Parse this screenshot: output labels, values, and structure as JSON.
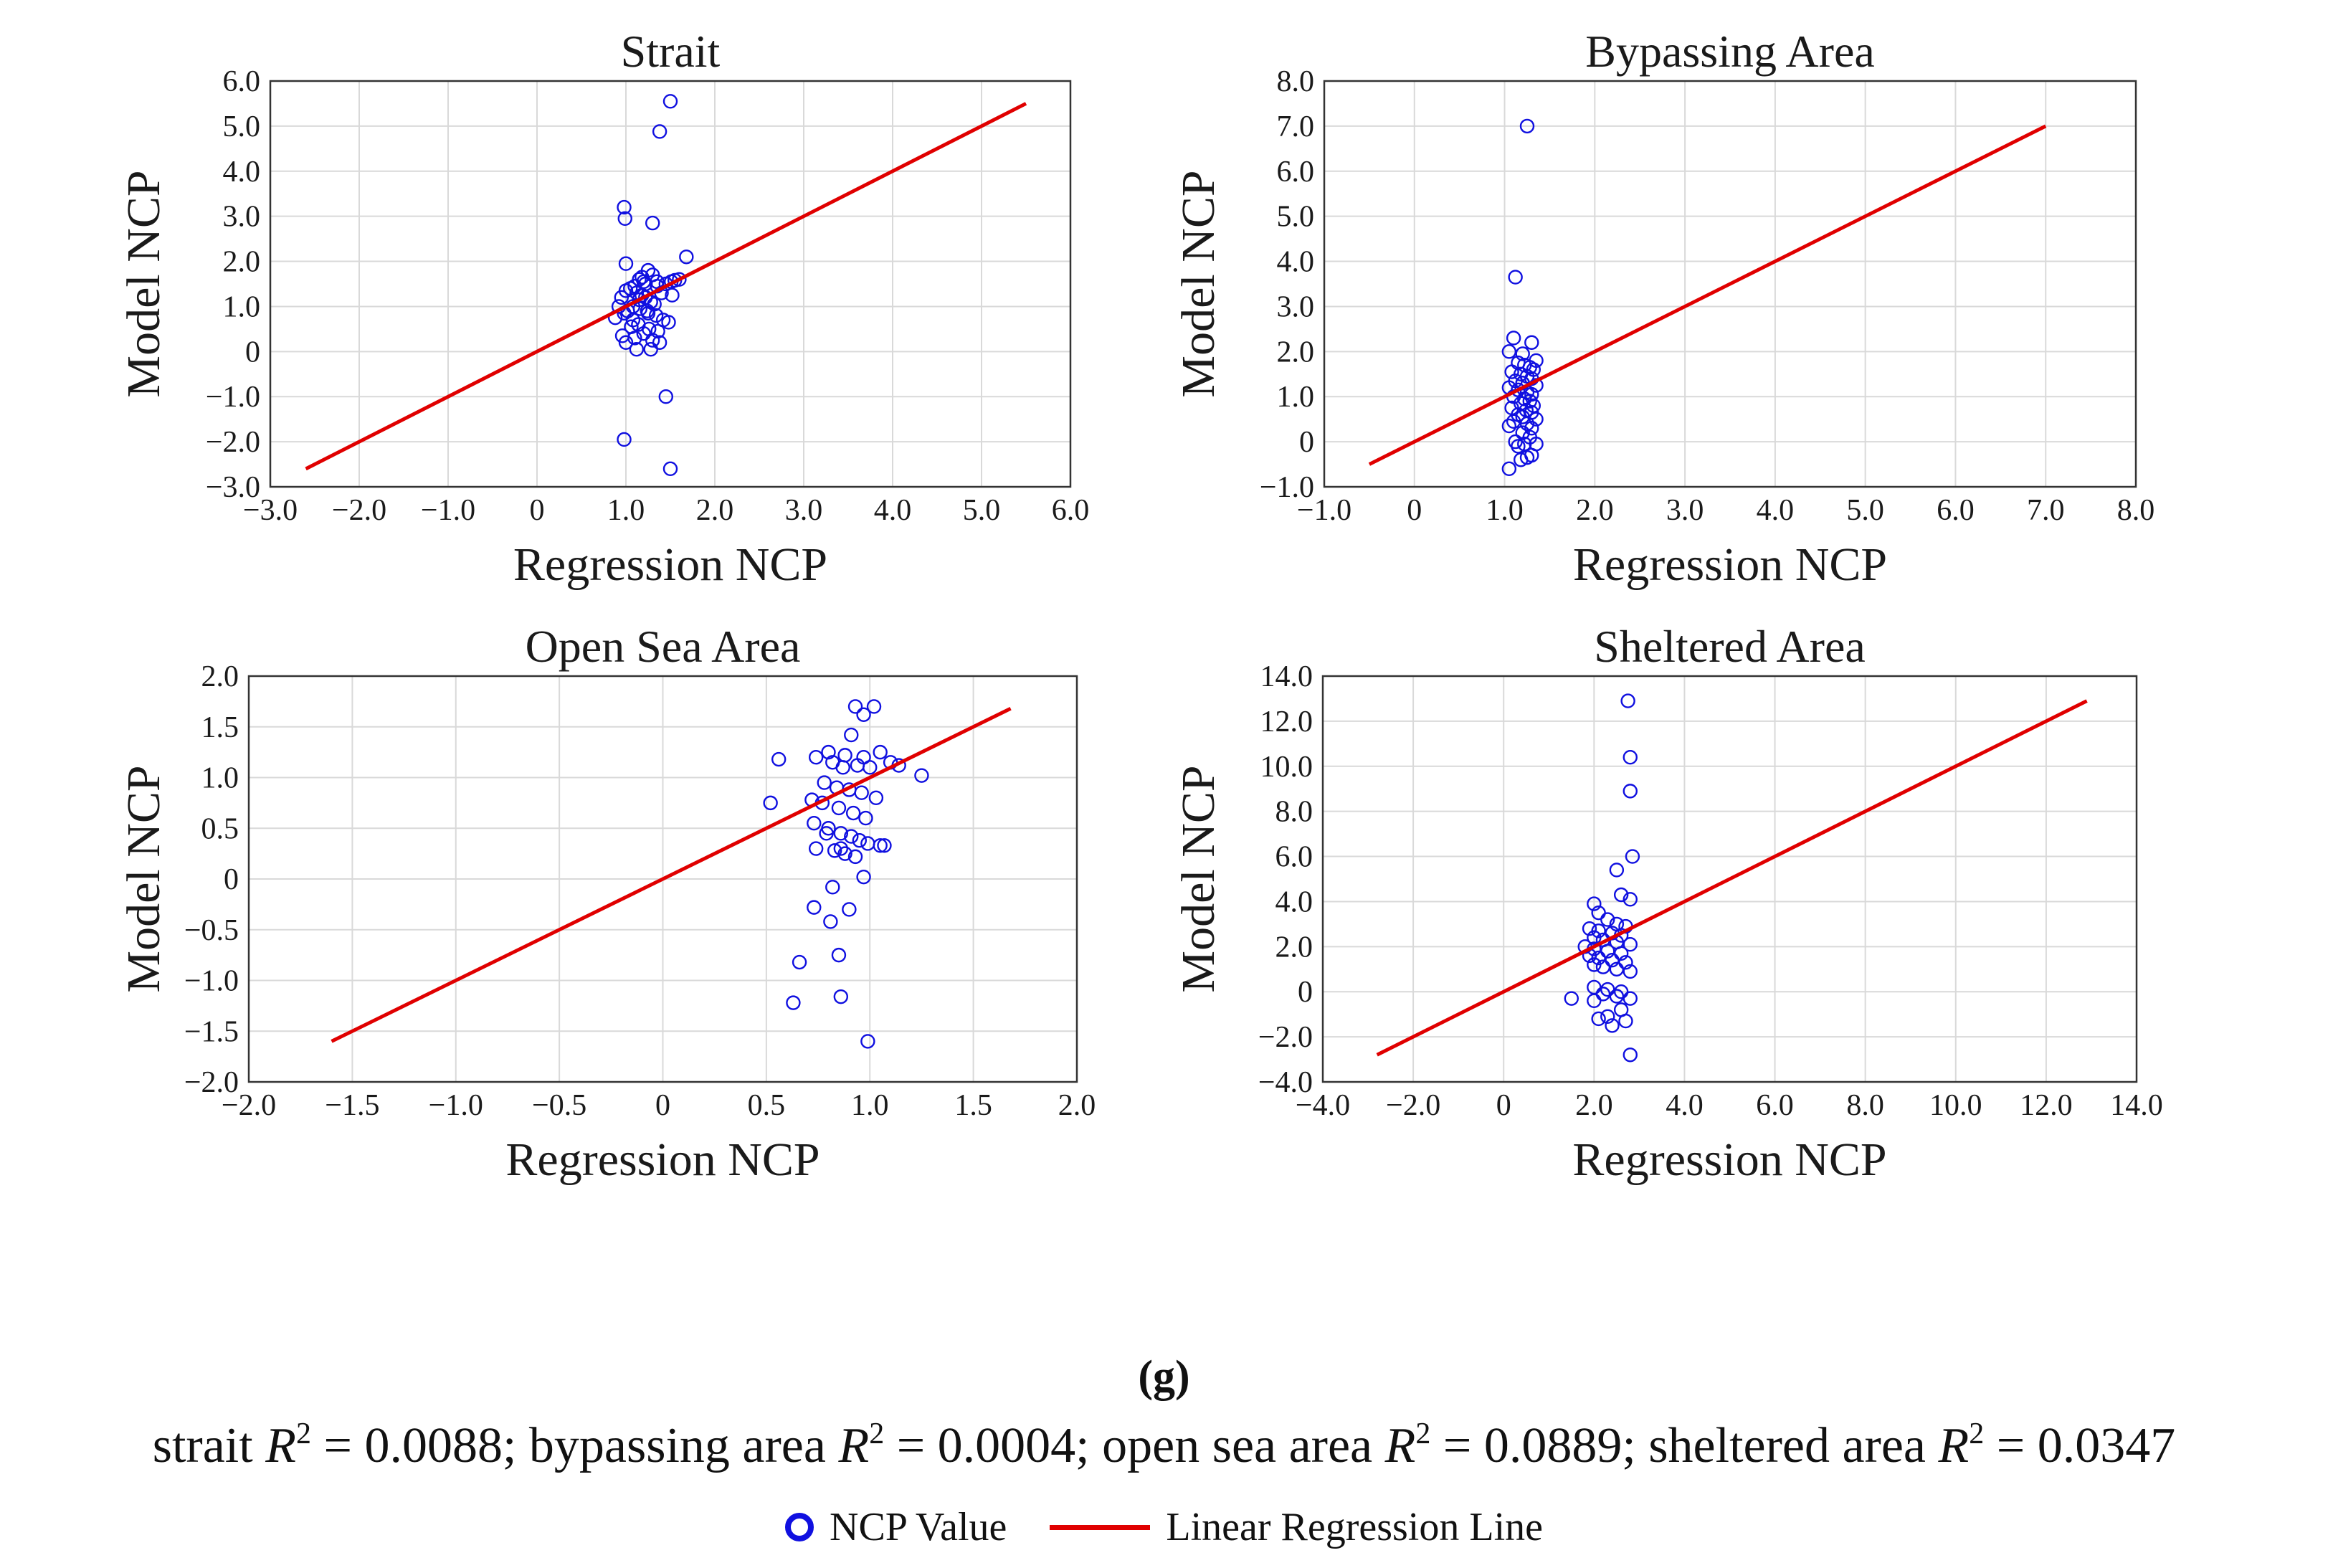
{
  "figure_label": "(g)",
  "r2_items": [
    {
      "name": "strait",
      "r2": "0.0088"
    },
    {
      "name": "bypassing area",
      "r2": "0.0004"
    },
    {
      "name": "open sea area",
      "r2": "0.0889"
    },
    {
      "name": "sheltered area",
      "r2": "0.0347"
    }
  ],
  "r2_symbol": "R",
  "r2_superscript": "2",
  "legend": {
    "points_label": "NCP Value",
    "line_label": "Linear Regression Line"
  },
  "colors": {
    "points": "#1010e0",
    "line": "#e00000"
  },
  "chart_data": [
    {
      "type": "scatter",
      "title": "Strait",
      "xlabel": "Regression NCP",
      "ylabel": "Model NCP",
      "xlim": [
        -3.0,
        6.0
      ],
      "ylim": [
        -3.0,
        6.0
      ],
      "xticks": [
        -3.0,
        -2.0,
        -1.0,
        0,
        1.0,
        2.0,
        3.0,
        4.0,
        5.0,
        6.0
      ],
      "xtick_labels": [
        "−3.0",
        "−2.0",
        "−1.0",
        "0",
        "1.0",
        "2.0",
        "3.0",
        "4.0",
        "5.0",
        "6.0"
      ],
      "yticks": [
        -3.0,
        -2.0,
        -1.0,
        0,
        1.0,
        2.0,
        3.0,
        4.0,
        5.0,
        6.0
      ],
      "ytick_labels": [
        "−3.0",
        "−2.0",
        "−1.0",
        "0",
        "1.0",
        "2.0",
        "3.0",
        "4.0",
        "5.0",
        "6.0"
      ],
      "regression_line": {
        "x": [
          -2.6,
          5.5
        ],
        "y": [
          -2.6,
          5.5
        ]
      },
      "x": [
        1.5,
        1.38,
        0.98,
        0.99,
        1.3,
        1.68,
        1.0,
        1.6,
        1.55,
        1.51,
        1.45,
        1.4,
        1.52,
        1.15,
        1.2,
        1.25,
        1.3,
        1.35,
        1.1,
        1.05,
        1.0,
        0.95,
        0.92,
        0.88,
        1.12,
        1.18,
        1.22,
        1.28,
        1.32,
        1.08,
        1.02,
        0.98,
        1.16,
        1.24,
        1.34,
        1.42,
        1.48,
        1.14,
        1.06,
        1.26,
        1.36,
        1.2,
        1.1,
        1.3,
        1.12,
        1.28,
        1.18,
        1.22,
        1.35,
        1.0,
        1.15,
        1.25,
        0.96,
        1.38,
        1.45,
        1.08,
        0.98,
        1.5
      ],
      "y": [
        5.55,
        4.88,
        3.2,
        2.95,
        2.85,
        2.1,
        1.95,
        1.6,
        1.58,
        1.55,
        1.5,
        1.3,
        1.25,
        1.6,
        1.55,
        1.8,
        1.7,
        1.55,
        1.45,
        1.4,
        1.35,
        1.2,
        1.0,
        0.75,
        1.3,
        1.25,
        1.2,
        1.1,
        1.05,
        1.0,
        0.9,
        0.85,
        0.95,
        0.9,
        0.8,
        0.7,
        0.65,
        0.6,
        0.55,
        0.5,
        0.45,
        0.4,
        0.3,
        0.25,
        0.05,
        0.05,
        1.65,
        1.5,
        1.45,
        0.2,
        1.15,
        0.85,
        0.35,
        0.2,
        -1.0,
        0.7,
        -1.95,
        -2.6
      ]
    },
    {
      "type": "scatter",
      "title": "Bypassing Area",
      "xlabel": "Regression NCP",
      "ylabel": "Model NCP",
      "xlim": [
        -1.0,
        8.0
      ],
      "ylim": [
        -1.0,
        8.0
      ],
      "xticks": [
        -1.0,
        0,
        1.0,
        2.0,
        3.0,
        4.0,
        5.0,
        6.0,
        7.0,
        8.0
      ],
      "xtick_labels": [
        "−1.0",
        "0",
        "1.0",
        "2.0",
        "3.0",
        "4.0",
        "5.0",
        "6.0",
        "7.0",
        "8.0"
      ],
      "yticks": [
        -1.0,
        0,
        1.0,
        2.0,
        3.0,
        4.0,
        5.0,
        6.0,
        7.0,
        8.0
      ],
      "ytick_labels": [
        "−1.0",
        "0",
        "1.0",
        "2.0",
        "3.0",
        "4.0",
        "5.0",
        "6.0",
        "7.0",
        "8.0"
      ],
      "regression_line": {
        "x": [
          -0.5,
          7.0
        ],
        "y": [
          -0.5,
          7.0
        ]
      },
      "x": [
        1.25,
        1.12,
        1.1,
        1.3,
        1.05,
        1.2,
        1.35,
        1.15,
        1.22,
        1.28,
        1.32,
        1.08,
        1.18,
        1.25,
        1.3,
        1.12,
        1.2,
        1.35,
        1.05,
        1.15,
        1.25,
        1.3,
        1.1,
        1.22,
        1.28,
        1.18,
        1.32,
        1.08,
        1.24,
        1.3,
        1.15,
        1.2,
        1.35,
        1.1,
        1.25,
        1.05,
        1.3,
        1.2,
        1.28,
        1.12,
        1.22,
        1.15,
        1.3,
        1.25,
        1.18,
        1.35,
        1.05,
        1.2
      ],
      "y": [
        7.0,
        3.65,
        2.3,
        2.2,
        2.0,
        1.95,
        1.8,
        1.75,
        1.7,
        1.65,
        1.6,
        1.55,
        1.5,
        1.45,
        1.4,
        1.35,
        1.3,
        1.25,
        1.2,
        1.15,
        1.1,
        1.05,
        1.0,
        0.95,
        0.9,
        0.85,
        0.8,
        0.75,
        0.7,
        0.65,
        0.6,
        0.55,
        0.5,
        0.45,
        0.4,
        0.35,
        0.3,
        0.2,
        0.1,
        0.0,
        -0.05,
        -0.1,
        -0.3,
        -0.35,
        -0.4,
        -0.05,
        -0.6,
        1.3
      ]
    },
    {
      "type": "scatter",
      "title": "Open Sea Area",
      "xlabel": "Regression NCP",
      "ylabel": "Model NCP",
      "xlim": [
        -2.0,
        2.0
      ],
      "ylim": [
        -2.0,
        2.0
      ],
      "xticks": [
        -2.0,
        -1.5,
        -1.0,
        -0.5,
        0,
        0.5,
        1.0,
        1.5,
        2.0
      ],
      "xtick_labels": [
        "−2.0",
        "−1.5",
        "−1.0",
        "−0.5",
        "0",
        "0.5",
        "1.0",
        "1.5",
        "2.0"
      ],
      "yticks": [
        -2.0,
        -1.5,
        -1.0,
        -0.5,
        0,
        0.5,
        1.0,
        1.5,
        2.0
      ],
      "ytick_labels": [
        "−2.0",
        "−1.5",
        "−1.0",
        "−0.5",
        "0",
        "0.5",
        "1.0",
        "1.5",
        "2.0"
      ],
      "regression_line": {
        "x": [
          -1.6,
          1.68
        ],
        "y": [
          -1.6,
          1.68
        ]
      },
      "x": [
        0.93,
        1.02,
        0.97,
        0.91,
        0.56,
        0.8,
        0.88,
        0.97,
        1.05,
        1.1,
        1.14,
        1.25,
        0.74,
        0.82,
        0.87,
        0.94,
        1.0,
        0.78,
        0.84,
        0.9,
        0.96,
        1.03,
        0.72,
        0.77,
        0.85,
        0.92,
        0.98,
        0.52,
        0.73,
        0.8,
        0.86,
        0.91,
        0.95,
        0.99,
        0.74,
        0.83,
        0.88,
        0.93,
        1.05,
        1.07,
        0.79,
        0.86,
        0.97,
        0.82,
        0.73,
        0.9,
        0.81,
        0.66,
        0.85,
        0.63,
        0.86,
        0.99
      ],
      "y": [
        1.7,
        1.7,
        1.62,
        1.42,
        1.18,
        1.25,
        1.22,
        1.2,
        1.25,
        1.15,
        1.12,
        1.02,
        1.2,
        1.15,
        1.1,
        1.12,
        1.1,
        0.95,
        0.9,
        0.88,
        0.85,
        0.8,
        0.78,
        0.75,
        0.7,
        0.65,
        0.6,
        0.75,
        0.55,
        0.5,
        0.45,
        0.42,
        0.38,
        0.35,
        0.3,
        0.28,
        0.25,
        0.22,
        0.33,
        0.33,
        0.45,
        0.3,
        0.02,
        -0.08,
        -0.28,
        -0.3,
        -0.42,
        -0.82,
        -0.75,
        -1.22,
        -1.16,
        -1.6
      ]
    },
    {
      "type": "scatter",
      "title": "Sheltered Area",
      "xlabel": "Regression NCP",
      "ylabel": "Model NCP",
      "xlim": [
        -4.0,
        14.0
      ],
      "ylim": [
        -4.0,
        14.0
      ],
      "xticks": [
        -4.0,
        -2.0,
        0,
        2.0,
        4.0,
        6.0,
        8.0,
        10.0,
        12.0,
        14.0
      ],
      "xtick_labels": [
        "−4.0",
        "−2.0",
        "0",
        "2.0",
        "4.0",
        "6.0",
        "8.0",
        "10.0",
        "12.0",
        "14.0"
      ],
      "yticks": [
        -4.0,
        -2.0,
        0,
        2.0,
        4.0,
        6.0,
        8.0,
        10.0,
        12.0,
        14.0
      ],
      "ytick_labels": [
        "−4.0",
        "−2.0",
        "0",
        "2.0",
        "4.0",
        "6.0",
        "8.0",
        "10.0",
        "12.0",
        "14.0"
      ],
      "regression_line": {
        "x": [
          -2.8,
          12.9
        ],
        "y": [
          -2.8,
          12.9
        ]
      },
      "x": [
        2.75,
        2.8,
        2.8,
        2.85,
        2.5,
        2.6,
        2.8,
        2.0,
        2.1,
        2.3,
        2.5,
        2.7,
        1.9,
        2.1,
        2.4,
        2.6,
        2.0,
        2.2,
        2.5,
        2.8,
        1.8,
        2.0,
        2.3,
        2.6,
        1.9,
        2.1,
        2.4,
        2.7,
        2.0,
        2.2,
        2.5,
        2.8,
        2.0,
        2.3,
        2.6,
        2.2,
        2.5,
        2.8,
        1.5,
        2.1,
        2.6,
        2.0,
        2.3,
        2.7,
        2.4,
        2.8
      ],
      "y": [
        12.9,
        10.4,
        8.9,
        6.0,
        5.4,
        4.3,
        4.1,
        3.9,
        3.5,
        3.2,
        3.0,
        2.9,
        2.8,
        2.7,
        2.6,
        2.5,
        2.4,
        2.3,
        2.2,
        2.1,
        2.0,
        1.9,
        1.8,
        1.7,
        1.6,
        1.5,
        1.4,
        1.3,
        1.2,
        1.1,
        1.0,
        0.9,
        0.2,
        0.1,
        0.0,
        -0.1,
        -0.2,
        -0.3,
        -0.3,
        -1.2,
        -0.8,
        -0.4,
        -1.1,
        -1.3,
        -1.5,
        -2.8
      ]
    }
  ]
}
